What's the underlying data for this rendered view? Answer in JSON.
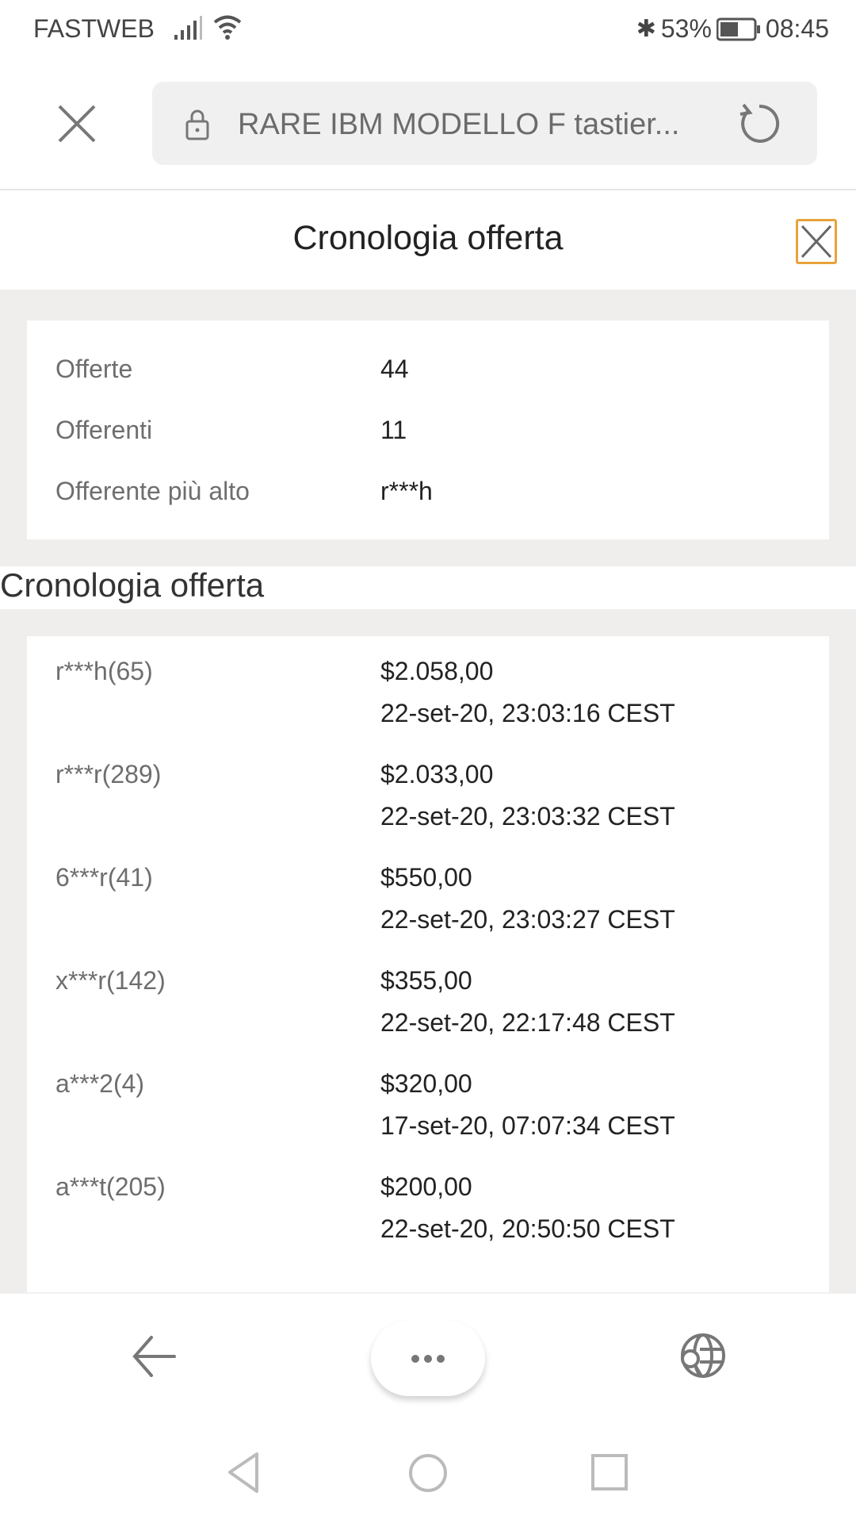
{
  "status_bar": {
    "carrier": "FASTWEB",
    "battery": "53%",
    "time": "08:45",
    "icons": [
      "signal-icon",
      "wifi-icon",
      "bluetooth-icon",
      "battery-icon"
    ]
  },
  "toolbar": {
    "url_title": "RARE IBM MODELLO F tastier...",
    "icons": [
      "close-icon",
      "lock-icon",
      "reload-icon"
    ]
  },
  "dialog": {
    "title": "Cronologia offerta",
    "accent": "#e8a33a"
  },
  "summary": [
    {
      "label": "Offerte",
      "value": "44"
    },
    {
      "label": "Offerenti",
      "value": "11"
    },
    {
      "label": "Offerente più alto",
      "value": "r***h"
    }
  ],
  "history": {
    "heading": "Cronologia offerta",
    "rows": [
      {
        "bidder": "r***h(65)",
        "amount": "$2.058,00",
        "date": "22-set-20, 23:03:16 CEST"
      },
      {
        "bidder": "r***r(289)",
        "amount": "$2.033,00",
        "date": "22-set-20, 23:03:32 CEST"
      },
      {
        "bidder": "6***r(41)",
        "amount": "$550,00",
        "date": "22-set-20, 23:03:27 CEST"
      },
      {
        "bidder": "x***r(142)",
        "amount": "$355,00",
        "date": "22-set-20, 22:17:48 CEST"
      },
      {
        "bidder": "a***2(4)",
        "amount": "$320,00",
        "date": "17-set-20, 07:07:34 CEST"
      },
      {
        "bidder": "a***t(205)",
        "amount": "$200,00",
        "date": "22-set-20, 20:50:50 CEST"
      }
    ]
  },
  "bottom_bar": {
    "icons": [
      "back-arrow-icon",
      "more-icon",
      "globe-search-icon"
    ]
  },
  "nav_bar": {
    "icons": [
      "nav-back-icon",
      "nav-home-icon",
      "nav-recents-icon"
    ]
  }
}
